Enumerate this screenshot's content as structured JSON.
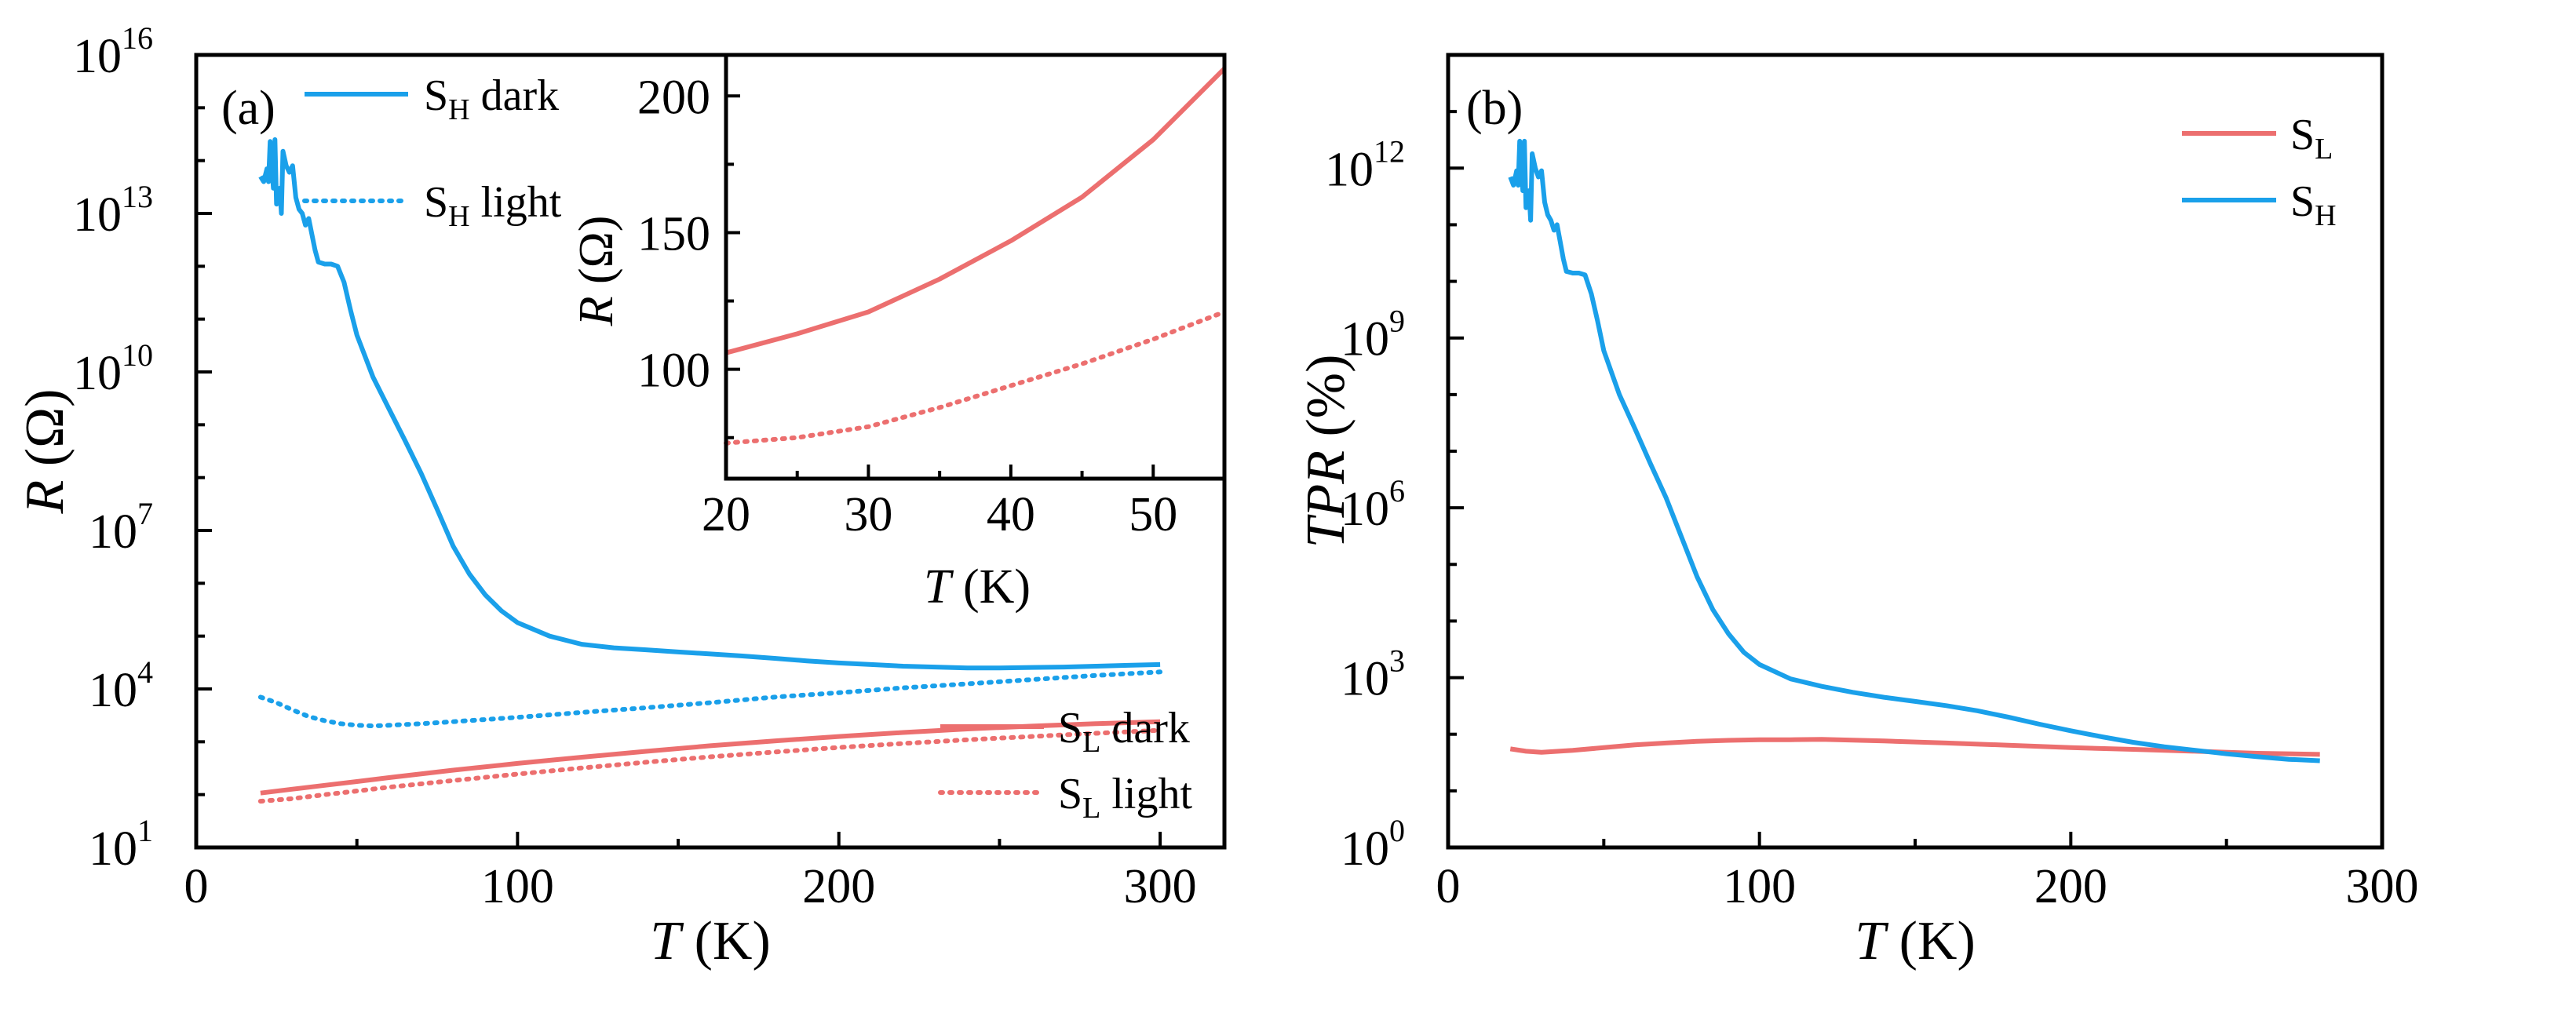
{
  "figure": {
    "colors": {
      "red": "#ec6f6f",
      "blue": "#1aa0ea",
      "axis": "#000000"
    }
  },
  "chart_data": [
    {
      "id": "a",
      "panel_label": "(a)",
      "type": "line",
      "xlabel": {
        "sym": "T",
        "unit": " (K)"
      },
      "ylabel": {
        "sym": "R",
        "unit": " (Ω)"
      },
      "yscale": "log",
      "xlim": [
        0,
        320
      ],
      "ylim_exp": [
        1,
        16
      ],
      "xticks": [
        0,
        100,
        200,
        300
      ],
      "yticks_exp": [
        1,
        4,
        7,
        10,
        13,
        16
      ],
      "ytick_labels": [
        {
          "base": "10",
          "exp": "1"
        },
        {
          "base": "10",
          "exp": "4"
        },
        {
          "base": "10",
          "exp": "7"
        },
        {
          "base": "10",
          "exp": "10"
        },
        {
          "base": "10",
          "exp": "13"
        },
        {
          "base": "10",
          "exp": "16"
        }
      ],
      "series": [
        {
          "name": "S_H dark",
          "label_main": "S",
          "label_sub": "H",
          "label_rest": " dark",
          "color": "blue",
          "style": "solid",
          "x": [
            20,
            21,
            22,
            22.5,
            23,
            24,
            24.5,
            25,
            26,
            26.5,
            27,
            28,
            29,
            30,
            31,
            32,
            33,
            34,
            35,
            36,
            37,
            38,
            40,
            42,
            44,
            46,
            48,
            50,
            55,
            60,
            65,
            70,
            75,
            80,
            85,
            90,
            95,
            100,
            110,
            120,
            130,
            140,
            150,
            160,
            170,
            180,
            190,
            200,
            210,
            220,
            230,
            240,
            250,
            260,
            270,
            280,
            290,
            300
          ],
          "y": [
            50000000000000.0,
            40000000000000.0,
            70000000000000.0,
            40000000000000.0,
            230000000000000.0,
            30000000000000.0,
            250000000000000.0,
            15000000000000.0,
            30000000000000.0,
            10000000000000.0,
            150000000000000.0,
            80000000000000.0,
            60000000000000.0,
            80000000000000.0,
            20000000000000.0,
            12000000000000.0,
            10000000000000.0,
            6000000000000.0,
            8000000000000.0,
            4000000000000.0,
            2000000000000.0,
            1200000000000.0,
            1100000000000.0,
            1100000000000.0,
            1000000000000.0,
            500000000000.0,
            150000000000.0,
            50000000000.0,
            8000000000.0,
            2000000000.0,
            500000000.0,
            120000000.0,
            25000000.0,
            5000000.0,
            1500000.0,
            600000.0,
            300000.0,
            180000.0,
            100000.0,
            70000.0,
            60000.0,
            55000.0,
            50000.0,
            46000.0,
            42000.0,
            38000.0,
            34000.0,
            31000.0,
            29000.0,
            27000.0,
            26000.0,
            25000.0,
            25000.0,
            25500.0,
            26000.0,
            27000.0,
            28000.0,
            29000.0
          ]
        },
        {
          "name": "S_H light",
          "label_main": "S",
          "label_sub": "H",
          "label_rest": " light",
          "color": "blue",
          "style": "dotted",
          "x": [
            20,
            25,
            30,
            35,
            40,
            45,
            50,
            55,
            60,
            70,
            80,
            100,
            120,
            140,
            160,
            180,
            200,
            220,
            240,
            260,
            280,
            300
          ],
          "y": [
            7000,
            5500,
            4000,
            3000,
            2500,
            2200,
            2050,
            2000,
            2050,
            2200,
            2400,
            2900,
            3600,
            4400,
            5500,
            7000,
            8500,
            10500,
            12500,
            15000,
            18000,
            21000
          ]
        },
        {
          "name": "S_L dark",
          "label_main": "S",
          "label_sub": "L",
          "label_rest": " dark",
          "color": "red",
          "style": "solid",
          "x": [
            20,
            30,
            40,
            50,
            60,
            80,
            100,
            120,
            140,
            160,
            180,
            200,
            220,
            240,
            260,
            280,
            300
          ],
          "y": [
            107,
            127,
            150,
            177,
            210,
            290,
            390,
            510,
            660,
            840,
            1040,
            1260,
            1500,
            1750,
            1980,
            2200,
            2400
          ]
        },
        {
          "name": "S_L light",
          "label_main": "S",
          "label_sub": "L",
          "label_rest": " light",
          "color": "red",
          "style": "dotted",
          "x": [
            20,
            30,
            40,
            50,
            60,
            80,
            100,
            120,
            140,
            160,
            180,
            200,
            220,
            240,
            260,
            280,
            300
          ],
          "y": [
            75,
            84,
            100,
            117,
            138,
            185,
            245,
            320,
            410,
            520,
            640,
            780,
            930,
            1090,
            1260,
            1450,
            1650
          ]
        }
      ],
      "inset": {
        "type": "line",
        "xlabel": {
          "sym": "T",
          "unit": " (K)"
        },
        "ylabel": {
          "sym": "R",
          "unit": " (Ω)"
        },
        "xlim": [
          20,
          55
        ],
        "ylim": [
          60,
          215
        ],
        "xticks": [
          20,
          30,
          40,
          50
        ],
        "yticks": [
          100,
          150,
          200
        ],
        "series": [
          {
            "name": "S_L dark",
            "color": "red",
            "style": "solid",
            "x": [
              20,
              25,
              30,
              35,
              40,
              45,
              50,
              55
            ],
            "y": [
              106,
              113,
              121,
              133,
              147,
              163,
              184,
              210
            ]
          },
          {
            "name": "S_L light",
            "color": "red",
            "style": "dotted",
            "x": [
              20,
              25,
              30,
              35,
              40,
              45,
              50,
              55
            ],
            "y": [
              73,
              75,
              79,
              86,
              94,
              102,
              111,
              121
            ]
          }
        ]
      }
    },
    {
      "id": "b",
      "panel_label": "(b)",
      "type": "line",
      "xlabel": {
        "sym": "T",
        "unit": " (K)"
      },
      "ylabel": {
        "sym": "TPR",
        "unit": " (%)"
      },
      "yscale": "log",
      "xlim": [
        0,
        300
      ],
      "ylim_exp": [
        0,
        14
      ],
      "xticks": [
        0,
        100,
        200,
        300
      ],
      "yticks_exp": [
        0,
        3,
        6,
        9,
        12
      ],
      "ytick_labels": [
        {
          "base": "10",
          "exp": "0"
        },
        {
          "base": "10",
          "exp": "3"
        },
        {
          "base": "10",
          "exp": "6"
        },
        {
          "base": "10",
          "exp": "9"
        },
        {
          "base": "10",
          "exp": "12"
        }
      ],
      "series": [
        {
          "name": "S_L",
          "label_main": "S",
          "label_sub": "L",
          "label_rest": "",
          "color": "red",
          "style": "solid",
          "x": [
            20,
            25,
            30,
            40,
            50,
            60,
            70,
            80,
            90,
            100,
            110,
            120,
            140,
            160,
            180,
            200,
            220,
            240,
            260,
            280
          ],
          "y": [
            55,
            50,
            48,
            52,
            58,
            65,
            70,
            75,
            78,
            80,
            80,
            81,
            76,
            70,
            64,
            58,
            54,
            50,
            46,
            44
          ]
        },
        {
          "name": "S_H",
          "label_main": "S",
          "label_sub": "H",
          "label_rest": "",
          "color": "blue",
          "style": "solid",
          "x": [
            20,
            21,
            22,
            22.5,
            23,
            24,
            24.5,
            25,
            26,
            26.5,
            27,
            28,
            29,
            30,
            31,
            32,
            33,
            34,
            35,
            36,
            37,
            38,
            40,
            42,
            44,
            46,
            48,
            50,
            55,
            60,
            65,
            70,
            75,
            80,
            85,
            90,
            95,
            100,
            110,
            120,
            130,
            140,
            150,
            160,
            170,
            180,
            190,
            200,
            210,
            220,
            230,
            240,
            250,
            260,
            270,
            280
          ],
          "y": [
            700000000000.0,
            500000000000.0,
            900000000000.0,
            500000000000.0,
            3000000000000.0,
            400000000000.0,
            3000000000000.0,
            200000000000.0,
            400000000000.0,
            120000000000.0,
            1800000000000.0,
            1000000000000.0,
            700000000000.0,
            900000000000.0,
            250000000000.0,
            150000000000.0,
            120000000000.0,
            80000000000.0,
            100000000000.0,
            50000000000.0,
            25000000000.0,
            15000000000.0,
            14000000000.0,
            14000000000.0,
            13000000000.0,
            6000000000.0,
            2000000000.0,
            600000000.0,
            100000000.0,
            25000000.0,
            6000000.0,
            1500000.0,
            300000.0,
            60000.0,
            16000.0,
            6000,
            2800,
            1700,
            950,
            700,
            550,
            450,
            380,
            320,
            260,
            200,
            150,
            115,
            90,
            72,
            60,
            52,
            45,
            40,
            36,
            34
          ]
        }
      ]
    }
  ]
}
